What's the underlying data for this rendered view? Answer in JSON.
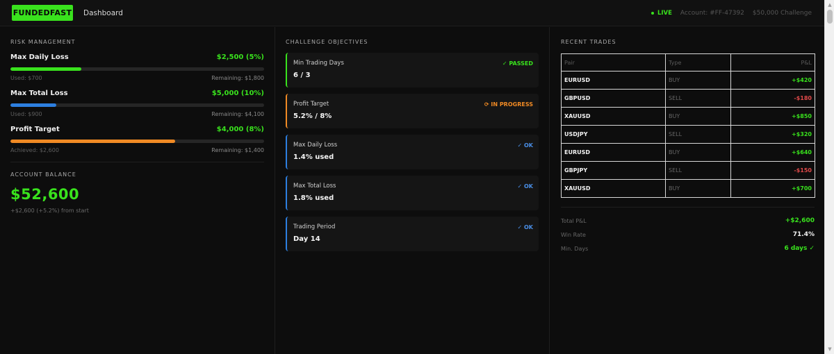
{
  "colors": {
    "green": "#39e21d",
    "red": "#e24a4a",
    "blue": "#2d7fe0",
    "orange": "#f08a24"
  },
  "header": {
    "logo": "FUNDEDFAST",
    "nav": "Dashboard",
    "live": "LIVE",
    "account": "Account: #FF-47392",
    "challenge": "$50,000 Challenge"
  },
  "risk": {
    "title": "RISK MANAGEMENT",
    "items": [
      {
        "name": "Max Daily Loss",
        "value": "$2,500 (5%)",
        "progress": 0.28,
        "color": "#39e21d",
        "left": "Used: $700",
        "right": "Remaining: $1,800"
      },
      {
        "name": "Max Total Loss",
        "value": "$5,000 (10%)",
        "progress": 0.18,
        "color": "#2d7fe0",
        "left": "Used: $900",
        "right": "Remaining: $4,100"
      },
      {
        "name": "Profit Target",
        "value": "$4,000 (8%)",
        "progress": 0.65,
        "color": "#f08a24",
        "left": "Achieved: $2,600",
        "right": "Remaining: $1,400"
      }
    ]
  },
  "balance": {
    "title": "ACCOUNT BALANCE",
    "amount": "$52,600",
    "sub": "+$2,600 (+5.2%) from start"
  },
  "objectives": {
    "title": "CHALLENGE OBJECTIVES",
    "items": [
      {
        "title": "Min Trading Days",
        "status": "✓ PASSED",
        "status_color": "#39e21d",
        "border": "#39e21d",
        "value": "6 / 3"
      },
      {
        "title": "Profit Target",
        "status": "⟳ IN PROGRESS",
        "status_color": "#f08a24",
        "border": "#f08a24",
        "value": "5.2% / 8%"
      },
      {
        "title": "Max Daily Loss",
        "status": "✓ OK",
        "status_color": "#4a8fe8",
        "border": "#2d7fe0",
        "value": "1.4% used"
      },
      {
        "title": "Max Total Loss",
        "status": "✓ OK",
        "status_color": "#4a8fe8",
        "border": "#2d7fe0",
        "value": "1.8% used"
      },
      {
        "title": "Trading Period",
        "status": "✓ OK",
        "status_color": "#4a8fe8",
        "border": "#2d7fe0",
        "value": "Day 14"
      }
    ]
  },
  "trades": {
    "title": "RECENT TRADES",
    "columns": [
      "Pair",
      "Type",
      "P&L"
    ],
    "rows": [
      {
        "pair": "EURUSD",
        "type": "BUY",
        "pnl": "+$420",
        "positive": true
      },
      {
        "pair": "GBPUSD",
        "type": "SELL",
        "pnl": "-$180",
        "positive": false
      },
      {
        "pair": "XAUUSD",
        "type": "BUY",
        "pnl": "+$850",
        "positive": true
      },
      {
        "pair": "USDJPY",
        "type": "SELL",
        "pnl": "+$320",
        "positive": true
      },
      {
        "pair": "EURUSD",
        "type": "BUY",
        "pnl": "+$640",
        "positive": true
      },
      {
        "pair": "GBPJPY",
        "type": "SELL",
        "pnl": "-$150",
        "positive": false
      },
      {
        "pair": "XAUUSD",
        "type": "BUY",
        "pnl": "+$700",
        "positive": true
      }
    ],
    "summary": [
      {
        "label": "Total P&L",
        "value": "+$2,600",
        "color": "#39e21d"
      },
      {
        "label": "Win Rate",
        "value": "71.4%",
        "color": "#f0f0f0"
      },
      {
        "label": "Min. Days",
        "value": "6 days ✓",
        "color": "#39e21d"
      }
    ]
  }
}
